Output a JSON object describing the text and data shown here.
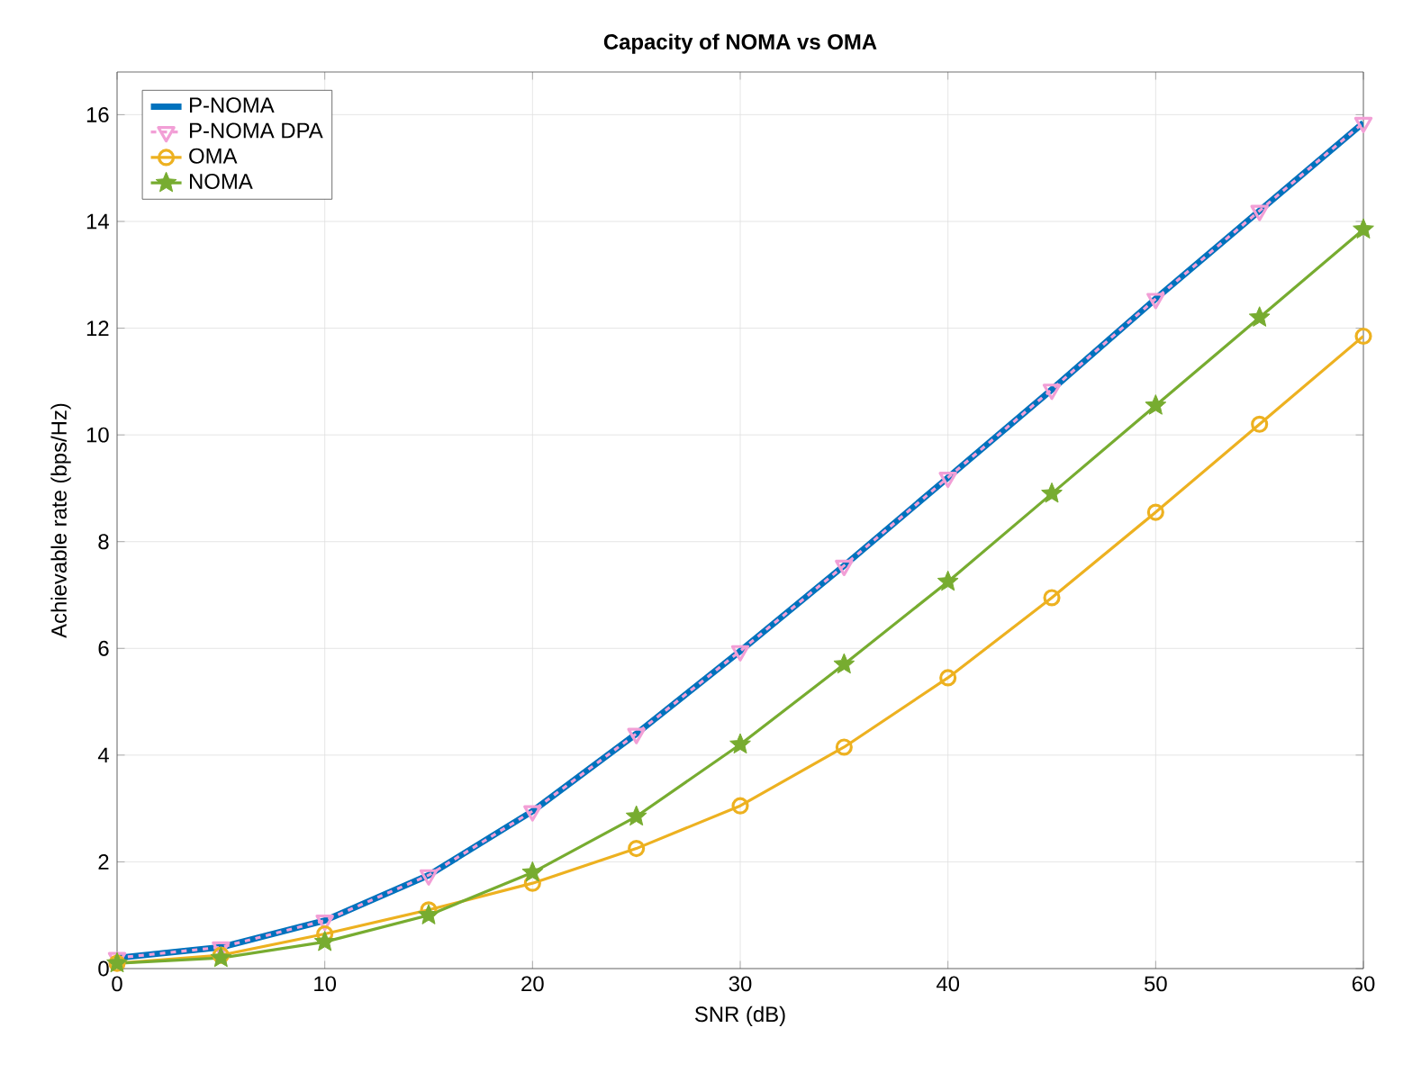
{
  "chart_data": {
    "type": "line",
    "title": "Capacity of NOMA vs OMA",
    "xlabel": "SNR (dB)",
    "ylabel": "Achievable rate (bps/Hz)",
    "x": [
      0,
      5,
      10,
      15,
      20,
      25,
      30,
      35,
      40,
      45,
      50,
      55,
      60
    ],
    "series": [
      {
        "name": "P-NOMA",
        "color": "#0072bd",
        "marker": "none",
        "line_style": "solid",
        "values": [
          0.2,
          0.4,
          0.9,
          1.75,
          2.95,
          4.4,
          5.95,
          7.55,
          9.2,
          10.85,
          12.55,
          14.2,
          15.85
        ]
      },
      {
        "name": "P-NOMA DPA",
        "color": "#f29fd6",
        "marker": "triangle",
        "line_style": "dashed",
        "values": [
          0.2,
          0.4,
          0.9,
          1.75,
          2.95,
          4.4,
          5.95,
          7.55,
          9.2,
          10.85,
          12.55,
          14.2,
          15.85
        ]
      },
      {
        "name": "OMA",
        "color": "#edb120",
        "marker": "circle",
        "line_style": "solid",
        "values": [
          0.1,
          0.25,
          0.65,
          1.1,
          1.6,
          2.25,
          3.05,
          4.15,
          5.45,
          6.95,
          8.55,
          10.2,
          11.85
        ]
      },
      {
        "name": "NOMA",
        "color": "#77ac30",
        "marker": "star",
        "line_style": "solid",
        "values": [
          0.1,
          0.2,
          0.5,
          1.0,
          1.8,
          2.85,
          4.2,
          5.7,
          7.25,
          8.9,
          10.55,
          12.2,
          13.85
        ]
      }
    ],
    "xlim": [
      0,
      60
    ],
    "xticks": [
      0,
      10,
      20,
      30,
      40,
      50,
      60
    ],
    "ylim": [
      0,
      16.8
    ],
    "yticks": [
      0,
      2,
      4,
      6,
      8,
      10,
      12,
      14,
      16
    ],
    "grid": true,
    "legend": "top left"
  }
}
